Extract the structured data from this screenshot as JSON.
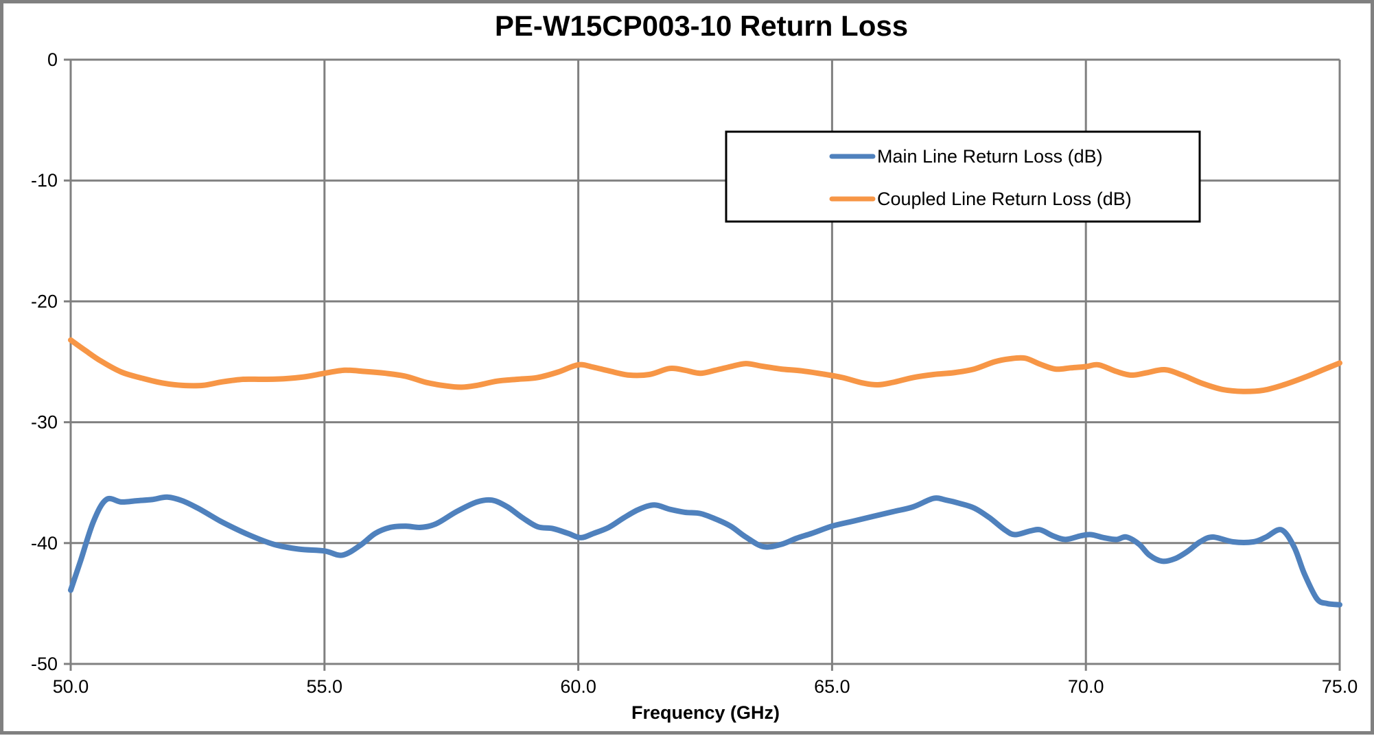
{
  "title": "PE-W15CP003-10 Return Loss",
  "x_axis": {
    "label": "Frequency (GHz)",
    "tick_labels": [
      "50.0",
      "55.0",
      "60.0",
      "65.0",
      "70.0",
      "75.0"
    ],
    "tick_values": [
      50,
      55,
      60,
      65,
      70,
      75
    ],
    "min": 50,
    "max": 75
  },
  "y_axis": {
    "tick_labels": [
      "0",
      "-10",
      "-20",
      "-30",
      "-40",
      "-50"
    ],
    "tick_values": [
      0,
      -10,
      -20,
      -30,
      -40,
      -50
    ],
    "min": -50,
    "max": 0
  },
  "legend": {
    "items": [
      {
        "label": "Main Line Return Loss (dB)",
        "color": "#4F81BD"
      },
      {
        "label": "Coupled Line Return Loss (dB)",
        "color": "#F79646"
      }
    ]
  },
  "colors": {
    "gridline": "#808080",
    "axis_line": "#808080",
    "outer_border": "#808080",
    "legend_border": "#000000",
    "legend_background": "#ffffff",
    "text": "#000000"
  },
  "chart_data": {
    "type": "line",
    "title": "PE-W15CP003-10 Return Loss",
    "xlabel": "Frequency (GHz)",
    "ylabel": "",
    "xlim": [
      50,
      75
    ],
    "ylim": [
      -50,
      0
    ],
    "x_ticks": [
      50,
      55,
      60,
      65,
      70,
      75
    ],
    "y_ticks": [
      0,
      -10,
      -20,
      -30,
      -40,
      -50
    ],
    "grid": true,
    "legend_position": "inside-upper-right",
    "series": [
      {
        "name": "Main Line Return Loss (dB)",
        "color": "#4F81BD",
        "points": [
          [
            50.0,
            -43.9
          ],
          [
            50.2,
            -41.4
          ],
          [
            50.45,
            -38.2
          ],
          [
            50.7,
            -36.4
          ],
          [
            51.0,
            -36.6
          ],
          [
            51.3,
            -36.5
          ],
          [
            51.6,
            -36.4
          ],
          [
            51.9,
            -36.2
          ],
          [
            52.2,
            -36.5
          ],
          [
            52.5,
            -37.1
          ],
          [
            52.75,
            -37.7
          ],
          [
            53.0,
            -38.3
          ],
          [
            53.5,
            -39.3
          ],
          [
            54.0,
            -40.1
          ],
          [
            54.5,
            -40.5
          ],
          [
            55.0,
            -40.65
          ],
          [
            55.35,
            -41.0
          ],
          [
            55.7,
            -40.2
          ],
          [
            56.0,
            -39.2
          ],
          [
            56.3,
            -38.7
          ],
          [
            56.6,
            -38.6
          ],
          [
            56.9,
            -38.7
          ],
          [
            57.2,
            -38.4
          ],
          [
            57.6,
            -37.4
          ],
          [
            58.0,
            -36.6
          ],
          [
            58.3,
            -36.45
          ],
          [
            58.6,
            -37.0
          ],
          [
            58.9,
            -37.9
          ],
          [
            59.2,
            -38.65
          ],
          [
            59.5,
            -38.8
          ],
          [
            59.8,
            -39.2
          ],
          [
            60.05,
            -39.55
          ],
          [
            60.3,
            -39.2
          ],
          [
            60.6,
            -38.7
          ],
          [
            60.9,
            -37.9
          ],
          [
            61.2,
            -37.2
          ],
          [
            61.5,
            -36.85
          ],
          [
            61.8,
            -37.2
          ],
          [
            62.1,
            -37.45
          ],
          [
            62.4,
            -37.55
          ],
          [
            62.7,
            -38.0
          ],
          [
            63.0,
            -38.6
          ],
          [
            63.3,
            -39.5
          ],
          [
            63.65,
            -40.3
          ],
          [
            64.0,
            -40.1
          ],
          [
            64.3,
            -39.6
          ],
          [
            64.6,
            -39.2
          ],
          [
            65.0,
            -38.6
          ],
          [
            65.4,
            -38.2
          ],
          [
            65.8,
            -37.8
          ],
          [
            66.2,
            -37.4
          ],
          [
            66.6,
            -37.0
          ],
          [
            67.0,
            -36.3
          ],
          [
            67.25,
            -36.45
          ],
          [
            67.5,
            -36.7
          ],
          [
            67.8,
            -37.1
          ],
          [
            68.1,
            -37.9
          ],
          [
            68.4,
            -38.9
          ],
          [
            68.6,
            -39.3
          ],
          [
            68.9,
            -39.0
          ],
          [
            69.1,
            -38.9
          ],
          [
            69.35,
            -39.4
          ],
          [
            69.6,
            -39.7
          ],
          [
            69.9,
            -39.4
          ],
          [
            70.1,
            -39.3
          ],
          [
            70.35,
            -39.55
          ],
          [
            70.6,
            -39.7
          ],
          [
            70.8,
            -39.5
          ],
          [
            71.05,
            -40.1
          ],
          [
            71.25,
            -41.0
          ],
          [
            71.5,
            -41.5
          ],
          [
            71.75,
            -41.3
          ],
          [
            72.0,
            -40.7
          ],
          [
            72.25,
            -39.9
          ],
          [
            72.5,
            -39.5
          ],
          [
            72.9,
            -39.9
          ],
          [
            73.3,
            -39.9
          ],
          [
            73.55,
            -39.5
          ],
          [
            73.85,
            -38.9
          ],
          [
            74.1,
            -40.3
          ],
          [
            74.3,
            -42.5
          ],
          [
            74.55,
            -44.6
          ],
          [
            74.75,
            -45.0
          ],
          [
            75.0,
            -45.1
          ]
        ]
      },
      {
        "name": "Coupled Line Return Loss (dB)",
        "color": "#F79646",
        "points": [
          [
            50.0,
            -23.2
          ],
          [
            50.3,
            -24.1
          ],
          [
            50.6,
            -24.95
          ],
          [
            51.0,
            -25.85
          ],
          [
            51.4,
            -26.35
          ],
          [
            51.8,
            -26.75
          ],
          [
            52.2,
            -26.95
          ],
          [
            52.6,
            -26.95
          ],
          [
            53.0,
            -26.65
          ],
          [
            53.4,
            -26.45
          ],
          [
            53.8,
            -26.45
          ],
          [
            54.2,
            -26.4
          ],
          [
            54.6,
            -26.25
          ],
          [
            55.0,
            -25.95
          ],
          [
            55.4,
            -25.7
          ],
          [
            55.8,
            -25.8
          ],
          [
            56.2,
            -25.95
          ],
          [
            56.6,
            -26.2
          ],
          [
            57.0,
            -26.7
          ],
          [
            57.4,
            -27.0
          ],
          [
            57.7,
            -27.1
          ],
          [
            58.0,
            -26.95
          ],
          [
            58.4,
            -26.6
          ],
          [
            58.8,
            -26.45
          ],
          [
            59.2,
            -26.3
          ],
          [
            59.6,
            -25.85
          ],
          [
            60.0,
            -25.25
          ],
          [
            60.3,
            -25.45
          ],
          [
            60.6,
            -25.75
          ],
          [
            61.0,
            -26.1
          ],
          [
            61.4,
            -26.05
          ],
          [
            61.8,
            -25.55
          ],
          [
            62.1,
            -25.7
          ],
          [
            62.4,
            -25.95
          ],
          [
            62.7,
            -25.7
          ],
          [
            63.0,
            -25.4
          ],
          [
            63.3,
            -25.15
          ],
          [
            63.6,
            -25.35
          ],
          [
            64.0,
            -25.6
          ],
          [
            64.4,
            -25.75
          ],
          [
            64.8,
            -26.0
          ],
          [
            65.2,
            -26.3
          ],
          [
            65.6,
            -26.75
          ],
          [
            65.9,
            -26.9
          ],
          [
            66.2,
            -26.7
          ],
          [
            66.6,
            -26.3
          ],
          [
            67.0,
            -26.05
          ],
          [
            67.4,
            -25.9
          ],
          [
            67.8,
            -25.6
          ],
          [
            68.2,
            -25.0
          ],
          [
            68.5,
            -24.75
          ],
          [
            68.8,
            -24.7
          ],
          [
            69.1,
            -25.2
          ],
          [
            69.4,
            -25.6
          ],
          [
            69.7,
            -25.5
          ],
          [
            70.0,
            -25.4
          ],
          [
            70.25,
            -25.25
          ],
          [
            70.6,
            -25.8
          ],
          [
            70.9,
            -26.1
          ],
          [
            71.2,
            -25.9
          ],
          [
            71.55,
            -25.65
          ],
          [
            71.9,
            -26.1
          ],
          [
            72.3,
            -26.8
          ],
          [
            72.7,
            -27.3
          ],
          [
            73.1,
            -27.45
          ],
          [
            73.5,
            -27.35
          ],
          [
            73.9,
            -26.9
          ],
          [
            74.3,
            -26.3
          ],
          [
            74.65,
            -25.7
          ],
          [
            75.0,
            -25.1
          ]
        ]
      }
    ]
  }
}
